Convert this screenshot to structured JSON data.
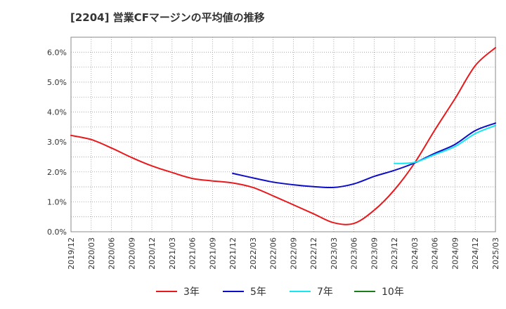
{
  "chart_data": {
    "type": "line",
    "title": "[2204]  営業CFマージンの平均値の推移",
    "xlabel": "",
    "ylabel": "",
    "x_ticks": [
      "2019/12",
      "2020/03",
      "2020/06",
      "2020/09",
      "2020/12",
      "2021/03",
      "2021/06",
      "2021/09",
      "2021/12",
      "2022/03",
      "2022/06",
      "2022/09",
      "2022/12",
      "2023/03",
      "2023/06",
      "2023/09",
      "2023/12",
      "2024/03",
      "2024/06",
      "2024/09",
      "2024/12",
      "2025/03"
    ],
    "y_ticks": [
      "0.0%",
      "1.0%",
      "2.0%",
      "3.0%",
      "4.0%",
      "5.0%",
      "6.0%"
    ],
    "ylim": [
      0,
      6.5
    ],
    "grid": true,
    "legend_position": "bottom",
    "series": [
      {
        "name": "3年",
        "color": "#e8191c",
        "points": [
          [
            "2019/12",
            3.22
          ],
          [
            "2020/03",
            3.08
          ],
          [
            "2020/06",
            2.8
          ],
          [
            "2020/09",
            2.48
          ],
          [
            "2020/12",
            2.2
          ],
          [
            "2021/03",
            1.98
          ],
          [
            "2021/06",
            1.78
          ],
          [
            "2021/09",
            1.7
          ],
          [
            "2021/12",
            1.63
          ],
          [
            "2022/03",
            1.48
          ],
          [
            "2022/06",
            1.2
          ],
          [
            "2022/09",
            0.9
          ],
          [
            "2022/12",
            0.6
          ],
          [
            "2023/03",
            0.3
          ],
          [
            "2023/06",
            0.28
          ],
          [
            "2023/09",
            0.72
          ],
          [
            "2023/12",
            1.4
          ],
          [
            "2024/03",
            2.3
          ],
          [
            "2024/06",
            3.4
          ],
          [
            "2024/09",
            4.45
          ],
          [
            "2024/12",
            5.55
          ],
          [
            "2025/03",
            6.15
          ]
        ]
      },
      {
        "name": "5年",
        "color": "#0d0dc8",
        "points": [
          [
            "2021/12",
            1.95
          ],
          [
            "2022/03",
            1.8
          ],
          [
            "2022/06",
            1.66
          ],
          [
            "2022/09",
            1.57
          ],
          [
            "2022/12",
            1.51
          ],
          [
            "2023/03",
            1.48
          ],
          [
            "2023/06",
            1.6
          ],
          [
            "2023/09",
            1.85
          ],
          [
            "2023/12",
            2.05
          ],
          [
            "2024/03",
            2.3
          ],
          [
            "2024/06",
            2.62
          ],
          [
            "2024/09",
            2.92
          ],
          [
            "2024/12",
            3.38
          ],
          [
            "2025/03",
            3.63
          ]
        ]
      },
      {
        "name": "7年",
        "color": "#16e6f0",
        "points": [
          [
            "2023/12",
            2.28
          ],
          [
            "2024/03",
            2.32
          ],
          [
            "2024/06",
            2.58
          ],
          [
            "2024/09",
            2.85
          ],
          [
            "2024/12",
            3.28
          ],
          [
            "2025/03",
            3.55
          ]
        ]
      },
      {
        "name": "10年",
        "color": "#1a7f1a",
        "points": []
      }
    ]
  }
}
